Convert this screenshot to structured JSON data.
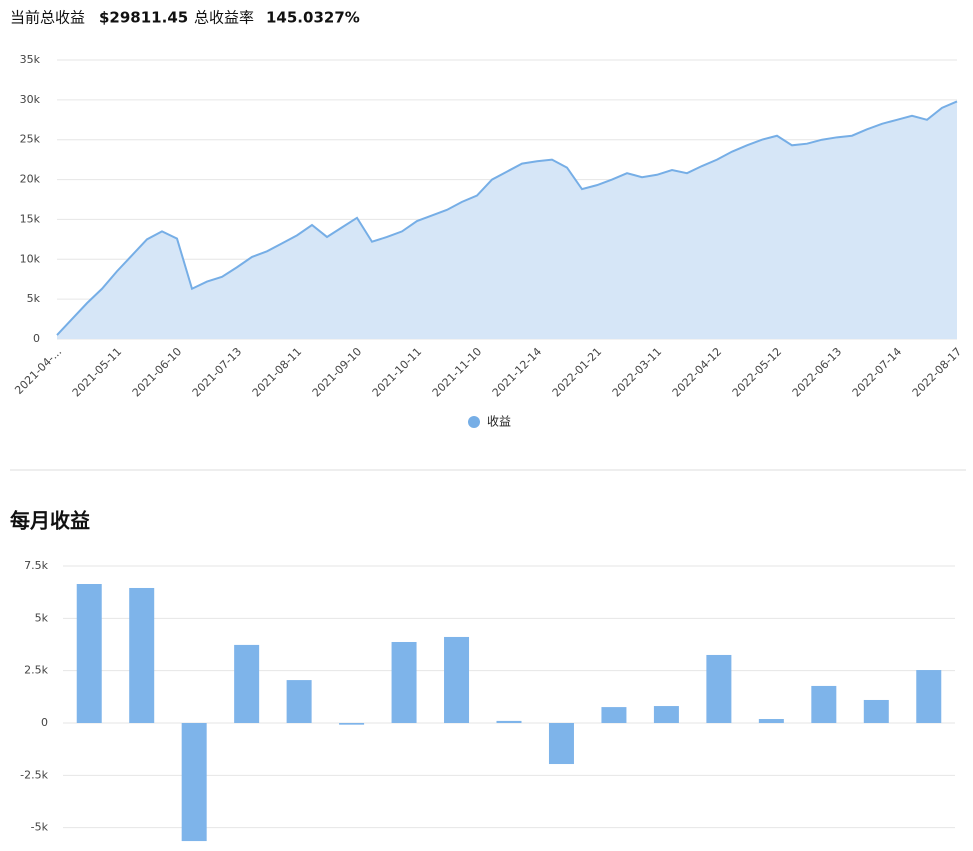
{
  "summary": {
    "profit_label": "当前总收益",
    "profit_value": "$29811.45",
    "rate_label": "总收益率",
    "rate_value": "145.0327%"
  },
  "chart_data": [
    {
      "type": "area",
      "x": [
        "2021-04-...",
        null,
        null,
        null,
        "2021-05-11",
        null,
        null,
        null,
        "2021-06-10",
        null,
        null,
        null,
        "2021-07-13",
        null,
        null,
        null,
        "2021-08-11",
        null,
        null,
        null,
        "2021-09-10",
        null,
        null,
        null,
        "2021-10-11",
        null,
        null,
        null,
        "2021-11-10",
        null,
        null,
        null,
        "2021-12-14",
        null,
        null,
        null,
        "2022-01-21",
        null,
        null,
        null,
        "2022-03-11",
        null,
        null,
        null,
        "2022-04-12",
        null,
        null,
        null,
        "2022-05-12",
        null,
        null,
        null,
        "2022-06-13",
        null,
        null,
        null,
        "2022-07-14",
        null,
        null,
        null,
        "2022-08-17"
      ],
      "series": [
        {
          "name": "收益",
          "color": "#76aee6",
          "fill": "#d6e6f7",
          "values": [
            500,
            2500,
            4500,
            6300,
            8500,
            10500,
            12500,
            13500,
            12600,
            6300,
            7200,
            7800,
            9000,
            10300,
            11000,
            12000,
            13000,
            14300,
            12800,
            14000,
            15200,
            12200,
            12800,
            13500,
            14800,
            15500,
            16200,
            17200,
            18000,
            20000,
            21000,
            22000,
            22300,
            22500,
            21500,
            18800,
            19300,
            20000,
            20800,
            20300,
            20600,
            21200,
            20800,
            21700,
            22500,
            23500,
            24300,
            25000,
            25500,
            24300,
            24500,
            25000,
            25300,
            25500,
            26300,
            27000,
            27500,
            28000,
            27500,
            29000,
            29800
          ]
        }
      ],
      "ylim": [
        0,
        35000
      ],
      "yticks": [
        0,
        {
          "value": 5000,
          "label": "5k"
        },
        {
          "value": 10000,
          "label": "10k"
        },
        {
          "value": 15000,
          "label": "15k"
        },
        {
          "value": 20000,
          "label": "20k"
        },
        {
          "value": 25000,
          "label": "25k"
        },
        {
          "value": 30000,
          "label": "30k"
        },
        {
          "value": 35000,
          "label": "35k"
        }
      ],
      "grid": true,
      "legend": "bottom"
    },
    {
      "type": "bar",
      "title": "每月收益",
      "categories": [
        null,
        null,
        null,
        null,
        null,
        null,
        null,
        null,
        null,
        null,
        null,
        null,
        null,
        null,
        null,
        null,
        null
      ],
      "values": [
        6640,
        6450,
        -5640,
        3730,
        2050,
        -80,
        3870,
        4110,
        100,
        -1960,
        760,
        810,
        3250,
        190,
        1770,
        1100,
        2530
      ],
      "color": "#7eb4ea",
      "ylim": [
        -6000,
        7500
      ],
      "yticks": [
        {
          "value": -5000,
          "label": "-5k"
        },
        {
          "value": -2500,
          "label": "-2.5k"
        },
        0,
        {
          "value": 2500,
          "label": "2.5k"
        },
        {
          "value": 5000,
          "label": "5k"
        },
        {
          "value": 7500,
          "label": "7.5k"
        }
      ],
      "grid": true
    }
  ]
}
